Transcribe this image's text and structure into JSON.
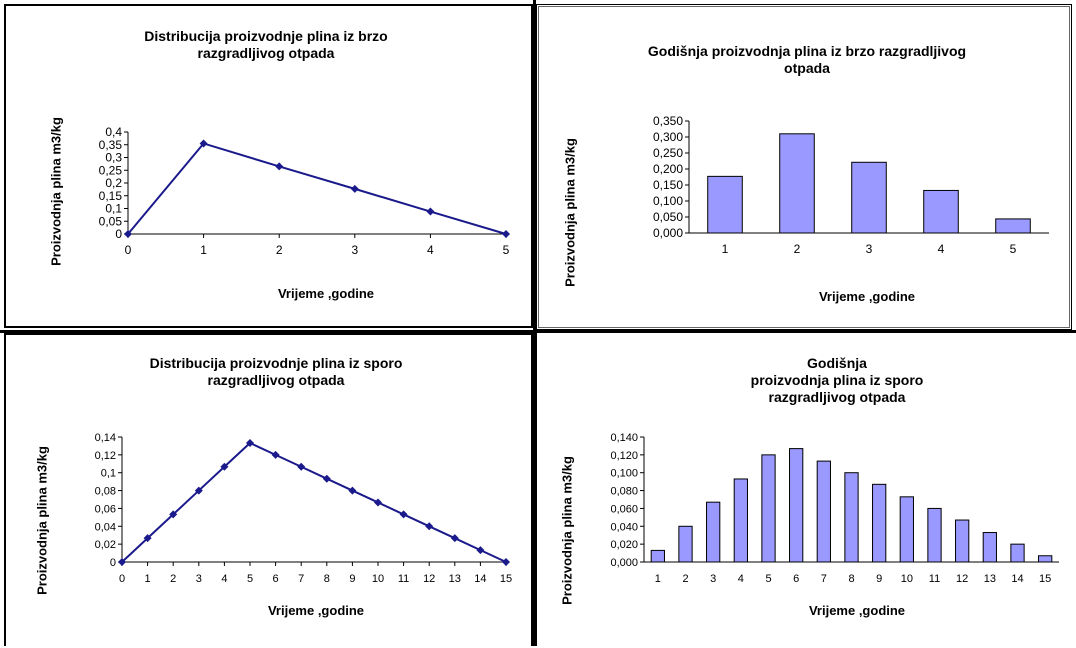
{
  "charts": [
    {
      "id": "c1",
      "type": "line",
      "title": "Distribucija proizvodnje  plina iz brzo\nrazgradljivog otpada",
      "xlabel": "Vrijeme ,godine",
      "ylabel": "Proizvodnja plina m3/kg",
      "x": [
        0,
        1,
        2,
        3,
        4,
        5
      ],
      "y": [
        0,
        0.355,
        0.265,
        0.177,
        0.088,
        0
      ],
      "yticks": [
        "0",
        "0,05",
        "0,1",
        "0,15",
        "0,2",
        "0,25",
        "0,3",
        "0,35",
        "0,4"
      ],
      "ylim": [
        0,
        0.4
      ],
      "color": "#1a1a8c"
    },
    {
      "id": "c2",
      "type": "bar",
      "title": "Godišnja proizvodnja  plina iz brzo razgradljivog\notpada",
      "xlabel": "Vrijeme ,godine",
      "ylabel": "Proizvodnja plina m3/kg",
      "categories": [
        "1",
        "2",
        "3",
        "4",
        "5"
      ],
      "values": [
        0.177,
        0.31,
        0.221,
        0.133,
        0.044
      ],
      "yticks": [
        "0,000",
        "0,050",
        "0,100",
        "0,150",
        "0,200",
        "0,250",
        "0,300",
        "0,350"
      ],
      "ylim": [
        0,
        0.35
      ],
      "color": "#9999ff"
    },
    {
      "id": "c3",
      "type": "line",
      "title": "Distribucija proizvodnje plina iz sporo\nrazgradljivog otpada",
      "xlabel": "Vrijeme ,godine",
      "ylabel": "Proizvodnja plina m3/kg",
      "x": [
        0,
        1,
        2,
        3,
        4,
        5,
        6,
        7,
        8,
        9,
        10,
        11,
        12,
        13,
        14,
        15
      ],
      "y": [
        0,
        0.0267,
        0.0533,
        0.08,
        0.1067,
        0.1333,
        0.12,
        0.1067,
        0.0933,
        0.08,
        0.0667,
        0.0533,
        0.04,
        0.0267,
        0.0133,
        0
      ],
      "yticks": [
        "0",
        "0,02",
        "0,04",
        "0,06",
        "0,08",
        "0,1",
        "0,12",
        "0,14"
      ],
      "ylim": [
        0,
        0.14
      ],
      "color": "#1a1a8c"
    },
    {
      "id": "c4",
      "type": "bar",
      "title": "Godišnja\nproizvodnja plina iz sporo\nrazgradljivog otpada",
      "xlabel": "Vrijeme ,godine",
      "ylabel": "Proizvodnja plina m3/kg",
      "categories": [
        "1",
        "2",
        "3",
        "4",
        "5",
        "6",
        "7",
        "8",
        "9",
        "10",
        "11",
        "12",
        "13",
        "14",
        "15"
      ],
      "values": [
        0.013,
        0.04,
        0.067,
        0.093,
        0.12,
        0.127,
        0.113,
        0.1,
        0.087,
        0.073,
        0.06,
        0.047,
        0.033,
        0.02,
        0.007
      ],
      "yticks": [
        "0,000",
        "0,020",
        "0,040",
        "0,060",
        "0,080",
        "0,100",
        "0,120",
        "0,140"
      ],
      "ylim": [
        0,
        0.14
      ],
      "color": "#9999ff"
    }
  ]
}
